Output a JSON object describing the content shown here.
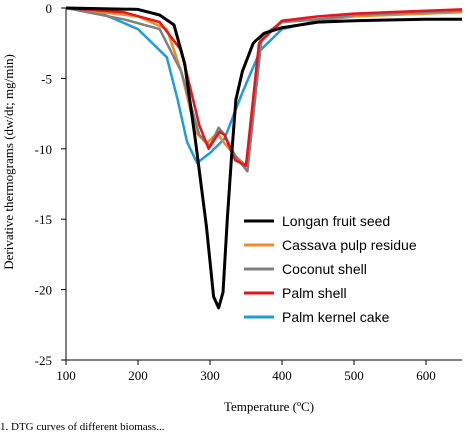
{
  "chart_data": {
    "type": "line",
    "xlabel": "Temperature (ºC)",
    "ylabel": "Derivative thermograms (dw/dt; mg/min)",
    "xlim": [
      100,
      650
    ],
    "ylim": [
      -25,
      0
    ],
    "xticks": [
      100,
      200,
      300,
      400,
      500,
      600
    ],
    "yticks": [
      0,
      -5,
      -10,
      -15,
      -20,
      -25
    ],
    "legend_position": "bottom-right",
    "grid": false,
    "series": [
      {
        "name": "Longan fruit seed",
        "color": "#000000",
        "x": [
          100,
          200,
          230,
          250,
          265,
          280,
          295,
          305,
          312,
          318,
          324,
          330,
          336,
          345,
          360,
          375,
          400,
          450,
          500,
          600,
          650
        ],
        "y": [
          0,
          -0.1,
          -0.5,
          -1.2,
          -4.0,
          -9.5,
          -15.5,
          -20.5,
          -21.3,
          -20.2,
          -15.0,
          -10.5,
          -6.5,
          -4.5,
          -2.5,
          -1.8,
          -1.4,
          -1.0,
          -0.9,
          -0.8,
          -0.8
        ]
      },
      {
        "name": "Cassava pulp residue",
        "color": "#f08a24",
        "x": [
          100,
          200,
          240,
          260,
          280,
          295,
          310,
          320,
          335,
          350,
          370,
          400,
          450,
          500,
          600,
          650
        ],
        "y": [
          0,
          -0.6,
          -1.5,
          -4.5,
          -8.8,
          -9.6,
          -8.9,
          -9.6,
          -10.5,
          -11.2,
          -2.2,
          -1.0,
          -0.8,
          -0.6,
          -0.4,
          -0.3
        ]
      },
      {
        "name": "Coconut shell",
        "color": "#808080",
        "x": [
          100,
          180,
          230,
          260,
          285,
          300,
          312,
          320,
          335,
          352,
          372,
          400,
          450,
          500,
          600,
          650
        ],
        "y": [
          0,
          -0.8,
          -1.5,
          -4.5,
          -9.0,
          -9.8,
          -8.5,
          -9.0,
          -10.5,
          -11.6,
          -2.0,
          -1.0,
          -0.8,
          -0.5,
          -0.3,
          -0.2
        ]
      },
      {
        "name": "Palm shell",
        "color": "#e8141b",
        "x": [
          100,
          180,
          230,
          260,
          285,
          298,
          313,
          320,
          335,
          350,
          368,
          400,
          450,
          500,
          600,
          650
        ],
        "y": [
          0,
          -0.3,
          -1.0,
          -3.0,
          -8.3,
          -10.0,
          -8.8,
          -9.0,
          -10.8,
          -11.2,
          -2.5,
          -0.9,
          -0.6,
          -0.4,
          -0.2,
          -0.1
        ]
      },
      {
        "name": "Palm kernel cake",
        "color": "#1f9be0",
        "x": [
          100,
          150,
          200,
          240,
          255,
          268,
          282,
          300,
          320,
          345,
          370,
          400,
          450,
          500,
          600,
          650
        ],
        "y": [
          0,
          -0.4,
          -1.5,
          -3.5,
          -6.5,
          -9.5,
          -11.0,
          -10.3,
          -9.3,
          -6.0,
          -3.0,
          -1.5,
          -0.9,
          -0.6,
          -0.3,
          -0.2
        ]
      }
    ]
  },
  "caption": "1. DTG curves of different biomass..."
}
